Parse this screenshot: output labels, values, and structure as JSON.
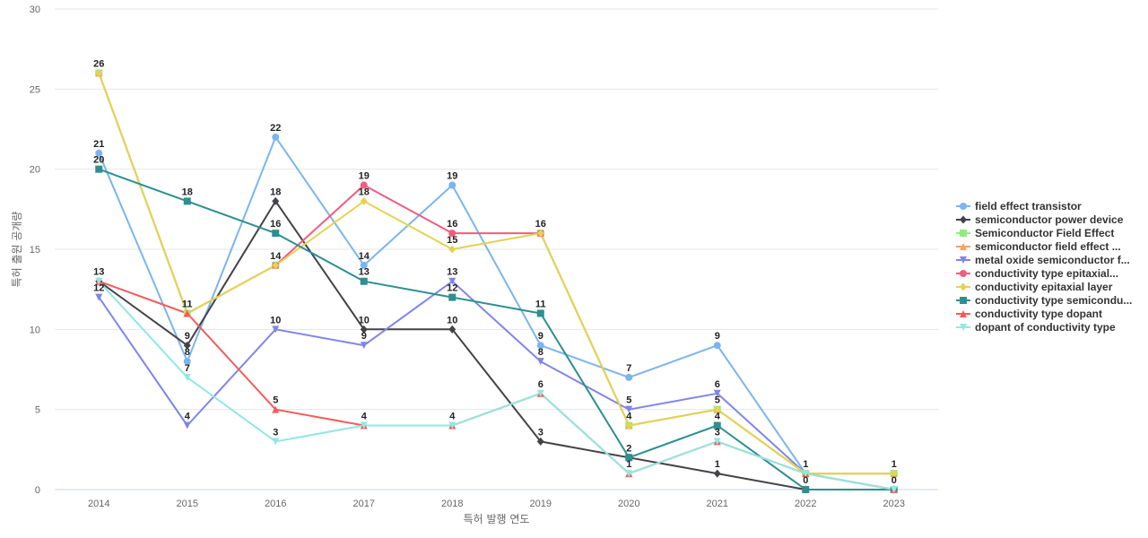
{
  "chart_data": {
    "type": "line",
    "xlabel": "특허 발행 연도",
    "ylabel": "특허 출원 공개량",
    "ylim": [
      0,
      30
    ],
    "yticks": [
      0,
      5,
      10,
      15,
      20,
      25,
      30
    ],
    "categories": [
      "2014",
      "2015",
      "2016",
      "2017",
      "2018",
      "2019",
      "2020",
      "2021",
      "2022",
      "2023"
    ],
    "grid": "horizontal",
    "legend_position": "right",
    "series": [
      {
        "name": "field effect transistor",
        "color": "#7cb5ec",
        "marker": "circle",
        "values": [
          21,
          8,
          22,
          14,
          19,
          9,
          7,
          9,
          1,
          1
        ]
      },
      {
        "name": "semiconductor power device",
        "color": "#434348",
        "marker": "diamond",
        "values": [
          13,
          9,
          18,
          10,
          10,
          3,
          2,
          1,
          0,
          0
        ]
      },
      {
        "name": "Semiconductor Field Effect",
        "color": "#90ed7d",
        "marker": "square",
        "values": [
          26,
          11,
          14,
          null,
          null,
          16,
          4,
          5,
          1,
          1
        ]
      },
      {
        "name": "semiconductor field effect ...",
        "color": "#f7a35c",
        "marker": "triangle",
        "values": [
          26,
          11,
          14,
          null,
          null,
          16,
          4,
          5,
          1,
          1
        ]
      },
      {
        "name": "metal oxide semiconductor f...",
        "color": "#8085e9",
        "marker": "triangle-down",
        "values": [
          12,
          4,
          10,
          9,
          13,
          8,
          5,
          6,
          1,
          0
        ]
      },
      {
        "name": "conductivity type epitaxial...",
        "color": "#f15c80",
        "marker": "circle",
        "values": [
          null,
          null,
          14,
          19,
          16,
          16,
          null,
          null,
          null,
          null
        ]
      },
      {
        "name": "conductivity epitaxial layer",
        "color": "#e4d354",
        "marker": "diamond",
        "values": [
          26,
          11,
          14,
          18,
          15,
          16,
          4,
          5,
          1,
          1
        ]
      },
      {
        "name": "conductivity type semicondu...",
        "color": "#2b908f",
        "marker": "square",
        "values": [
          20,
          18,
          16,
          13,
          12,
          11,
          2,
          4,
          0,
          0
        ]
      },
      {
        "name": "conductivity type dopant",
        "color": "#f45b5b",
        "marker": "triangle",
        "values": [
          13,
          11,
          5,
          4,
          4,
          6,
          1,
          3,
          1,
          0
        ]
      },
      {
        "name": "dopant of conductivity type",
        "color": "#91e8e1",
        "marker": "triangle-down",
        "values": [
          13,
          7,
          3,
          4,
          4,
          6,
          1,
          3,
          1,
          0
        ]
      }
    ],
    "data_labels": [
      {
        "x": "2014",
        "y": 26,
        "text": "26"
      },
      {
        "x": "2014",
        "y": 21,
        "text": "21"
      },
      {
        "x": "2014",
        "y": 20,
        "text": "20"
      },
      {
        "x": "2014",
        "y": 13,
        "text": "13"
      },
      {
        "x": "2014",
        "y": 12,
        "text": "12"
      },
      {
        "x": "2015",
        "y": 11,
        "text": "11"
      },
      {
        "x": "2015",
        "y": 9,
        "text": "9"
      },
      {
        "x": "2015",
        "y": 8,
        "text": "8"
      },
      {
        "x": "2015",
        "y": 7,
        "text": "7"
      },
      {
        "x": "2015",
        "y": 18,
        "text": "18"
      },
      {
        "x": "2015",
        "y": 4,
        "text": "4"
      },
      {
        "x": "2016",
        "y": 22,
        "text": "22"
      },
      {
        "x": "2016",
        "y": 18,
        "text": "18"
      },
      {
        "x": "2016",
        "y": 16,
        "text": "16"
      },
      {
        "x": "2016",
        "y": 14,
        "text": "14"
      },
      {
        "x": "2016",
        "y": 10,
        "text": "10"
      },
      {
        "x": "2016",
        "y": 5,
        "text": "5"
      },
      {
        "x": "2016",
        "y": 3,
        "text": "3"
      },
      {
        "x": "2017",
        "y": 19,
        "text": "19"
      },
      {
        "x": "2017",
        "y": 18,
        "text": "18"
      },
      {
        "x": "2017",
        "y": 14,
        "text": "14"
      },
      {
        "x": "2017",
        "y": 13,
        "text": "13"
      },
      {
        "x": "2017",
        "y": 10,
        "text": "10"
      },
      {
        "x": "2017",
        "y": 9,
        "text": "9"
      },
      {
        "x": "2017",
        "y": 4,
        "text": "4"
      },
      {
        "x": "2018",
        "y": 19,
        "text": "19"
      },
      {
        "x": "2018",
        "y": 16,
        "text": "16"
      },
      {
        "x": "2018",
        "y": 15,
        "text": "15"
      },
      {
        "x": "2018",
        "y": 13,
        "text": "13"
      },
      {
        "x": "2018",
        "y": 12,
        "text": "12"
      },
      {
        "x": "2018",
        "y": 10,
        "text": "10"
      },
      {
        "x": "2018",
        "y": 4,
        "text": "4"
      },
      {
        "x": "2019",
        "y": 16,
        "text": "16"
      },
      {
        "x": "2019",
        "y": 11,
        "text": "11"
      },
      {
        "x": "2019",
        "y": 9,
        "text": "9"
      },
      {
        "x": "2019",
        "y": 8,
        "text": "8"
      },
      {
        "x": "2019",
        "y": 6,
        "text": "6"
      },
      {
        "x": "2019",
        "y": 3,
        "text": "3"
      },
      {
        "x": "2020",
        "y": 7,
        "text": "7"
      },
      {
        "x": "2020",
        "y": 5,
        "text": "5"
      },
      {
        "x": "2020",
        "y": 4,
        "text": "4"
      },
      {
        "x": "2020",
        "y": 2,
        "text": "2"
      },
      {
        "x": "2020",
        "y": 1,
        "text": "1"
      },
      {
        "x": "2021",
        "y": 9,
        "text": "9"
      },
      {
        "x": "2021",
        "y": 6,
        "text": "6"
      },
      {
        "x": "2021",
        "y": 5,
        "text": "5"
      },
      {
        "x": "2021",
        "y": 4,
        "text": "4"
      },
      {
        "x": "2021",
        "y": 3,
        "text": "3"
      },
      {
        "x": "2021",
        "y": 1,
        "text": "1"
      },
      {
        "x": "2022",
        "y": 1,
        "text": "1"
      },
      {
        "x": "2022",
        "y": 0,
        "text": "0"
      },
      {
        "x": "2023",
        "y": 1,
        "text": "1"
      },
      {
        "x": "2023",
        "y": 0,
        "text": "0"
      }
    ]
  }
}
